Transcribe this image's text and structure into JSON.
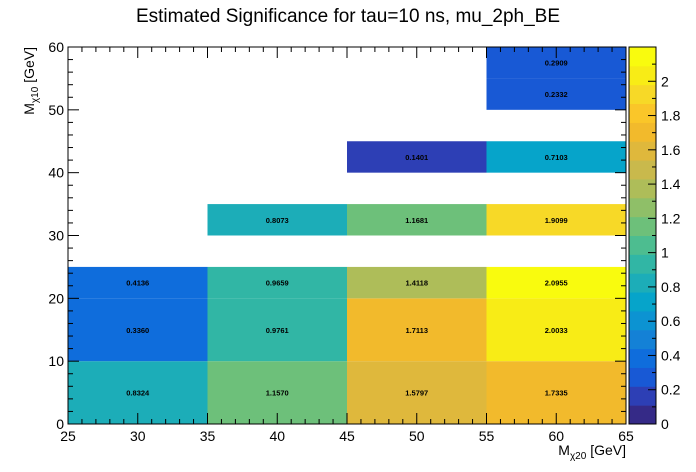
{
  "chart_data": {
    "type": "heatmap",
    "title": "Estimated Significance for tau=10 ns, mu_2ph_BE",
    "xlabel": {
      "main": "M",
      "sub": "χ20",
      "unit": " [GeV]"
    },
    "ylabel": {
      "main": "M",
      "sub": "χ10",
      "unit": " [GeV]"
    },
    "xlim": [
      25,
      65
    ],
    "ylim": [
      0,
      60
    ],
    "zlim": [
      0,
      2.2
    ],
    "x_ticks": [
      25,
      30,
      35,
      40,
      45,
      50,
      55,
      60,
      65
    ],
    "y_ticks": [
      0,
      10,
      20,
      30,
      40,
      50,
      60
    ],
    "z_ticks": [
      0,
      0.2,
      0.4,
      0.6,
      0.8,
      1,
      1.2,
      1.4,
      1.6,
      1.8,
      2
    ],
    "cells": [
      {
        "x": [
          25,
          35
        ],
        "y": [
          0,
          10
        ],
        "value": 0.8324,
        "label": "0.8324"
      },
      {
        "x": [
          35,
          45
        ],
        "y": [
          0,
          10
        ],
        "value": 1.157,
        "label": "1.1570"
      },
      {
        "x": [
          45,
          55
        ],
        "y": [
          0,
          10
        ],
        "value": 1.5797,
        "label": "1.5797"
      },
      {
        "x": [
          55,
          65
        ],
        "y": [
          0,
          10
        ],
        "value": 1.7335,
        "label": "1.7335"
      },
      {
        "x": [
          25,
          35
        ],
        "y": [
          10,
          20
        ],
        "value": 0.336,
        "label": "0.3360"
      },
      {
        "x": [
          35,
          45
        ],
        "y": [
          10,
          20
        ],
        "value": 0.9761,
        "label": "0.9761"
      },
      {
        "x": [
          45,
          55
        ],
        "y": [
          10,
          20
        ],
        "value": 1.7113,
        "label": "1.7113"
      },
      {
        "x": [
          55,
          65
        ],
        "y": [
          10,
          20
        ],
        "value": 2.0033,
        "label": "2.0033"
      },
      {
        "x": [
          25,
          35
        ],
        "y": [
          20,
          25
        ],
        "value": 0.4136,
        "label": "0.4136"
      },
      {
        "x": [
          35,
          45
        ],
        "y": [
          20,
          25
        ],
        "value": 0.9659,
        "label": "0.9659"
      },
      {
        "x": [
          45,
          55
        ],
        "y": [
          20,
          25
        ],
        "value": 1.4118,
        "label": "1.4118"
      },
      {
        "x": [
          55,
          65
        ],
        "y": [
          20,
          25
        ],
        "value": 2.0955,
        "label": "2.0955"
      },
      {
        "x": [
          35,
          45
        ],
        "y": [
          30,
          35
        ],
        "value": 0.8073,
        "label": "0.8073"
      },
      {
        "x": [
          45,
          55
        ],
        "y": [
          30,
          35
        ],
        "value": 1.1681,
        "label": "1.1681"
      },
      {
        "x": [
          55,
          65
        ],
        "y": [
          30,
          35
        ],
        "value": 1.9099,
        "label": "1.9099"
      },
      {
        "x": [
          45,
          55
        ],
        "y": [
          40,
          45
        ],
        "value": 0.1401,
        "label": "0.1401"
      },
      {
        "x": [
          55,
          65
        ],
        "y": [
          40,
          45
        ],
        "value": 0.7103,
        "label": "0.7103"
      },
      {
        "x": [
          55,
          65
        ],
        "y": [
          50,
          55
        ],
        "value": 0.2332,
        "label": "0.2332"
      },
      {
        "x": [
          55,
          65
        ],
        "y": [
          55,
          60
        ],
        "value": 0.2909,
        "label": "0.2909"
      }
    ],
    "palette": [
      "#352a87",
      "#2d3fb5",
      "#1859d5",
      "#0f6ddc",
      "#1481d6",
      "#0c93d2",
      "#06a4ca",
      "#1cadb8",
      "#31b6a5",
      "#4dbd90",
      "#6dc07a",
      "#8fbf68",
      "#aebd59",
      "#c9b94c",
      "#dfb83c",
      "#f2ba2c",
      "#fac629",
      "#f7d927",
      "#f8ec16",
      "#f9fb0e"
    ],
    "grid": false,
    "colorbar": "right"
  }
}
